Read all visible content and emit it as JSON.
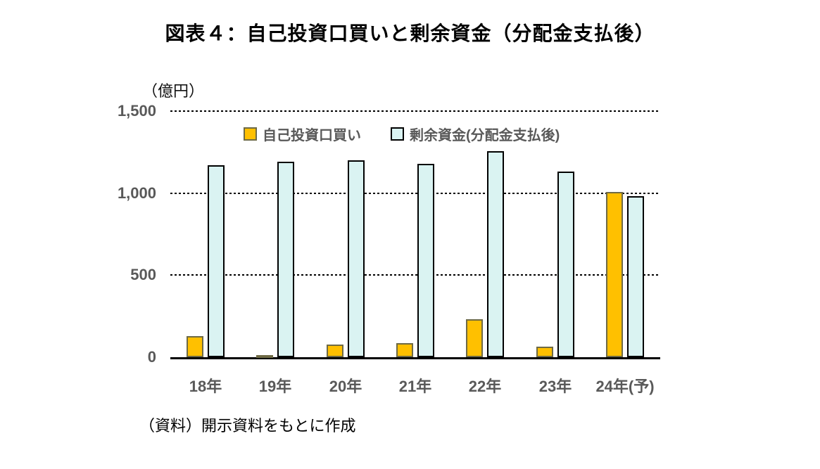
{
  "title": "図表４：自己投資口買いと剰余資金（分配金支払後）",
  "source_note": "（資料）開示資料をもとに作成",
  "colors": {
    "axis_text": "#595959",
    "title_text": "#000000",
    "own_buyback_fill": "#FFC000",
    "own_buyback_border": "#6E6A45",
    "surplus_fill": "#DAF3F2",
    "surplus_border": "#000000",
    "gridline": "#000000"
  },
  "chart_data": {
    "type": "bar",
    "title": "図表４：自己投資口買いと剰余資金（分配金支払後）",
    "categories": [
      "18年",
      "19年",
      "20年",
      "21年",
      "22年",
      "23年",
      "24年(予)"
    ],
    "series": [
      {
        "name": "自己投資口買い",
        "fill": "#FFC000",
        "border": "#6E6A45",
        "values": [
          130,
          8,
          75,
          85,
          230,
          65,
          1005
        ]
      },
      {
        "name": "剰余資金(分配金支払後)",
        "fill": "#DAF3F2",
        "border": "#000000",
        "values": [
          1170,
          1190,
          1200,
          1180,
          1255,
          1130,
          980
        ]
      }
    ],
    "xlabel": "",
    "ylabel": "（億円）",
    "ylim": [
      0,
      1500
    ],
    "yticks": [
      0,
      500,
      1000,
      1500
    ],
    "ytick_labels": [
      "0",
      "500",
      "1,000",
      "1,500"
    ],
    "grid": "horizontal-dotted",
    "legend_position": "top-inside"
  }
}
